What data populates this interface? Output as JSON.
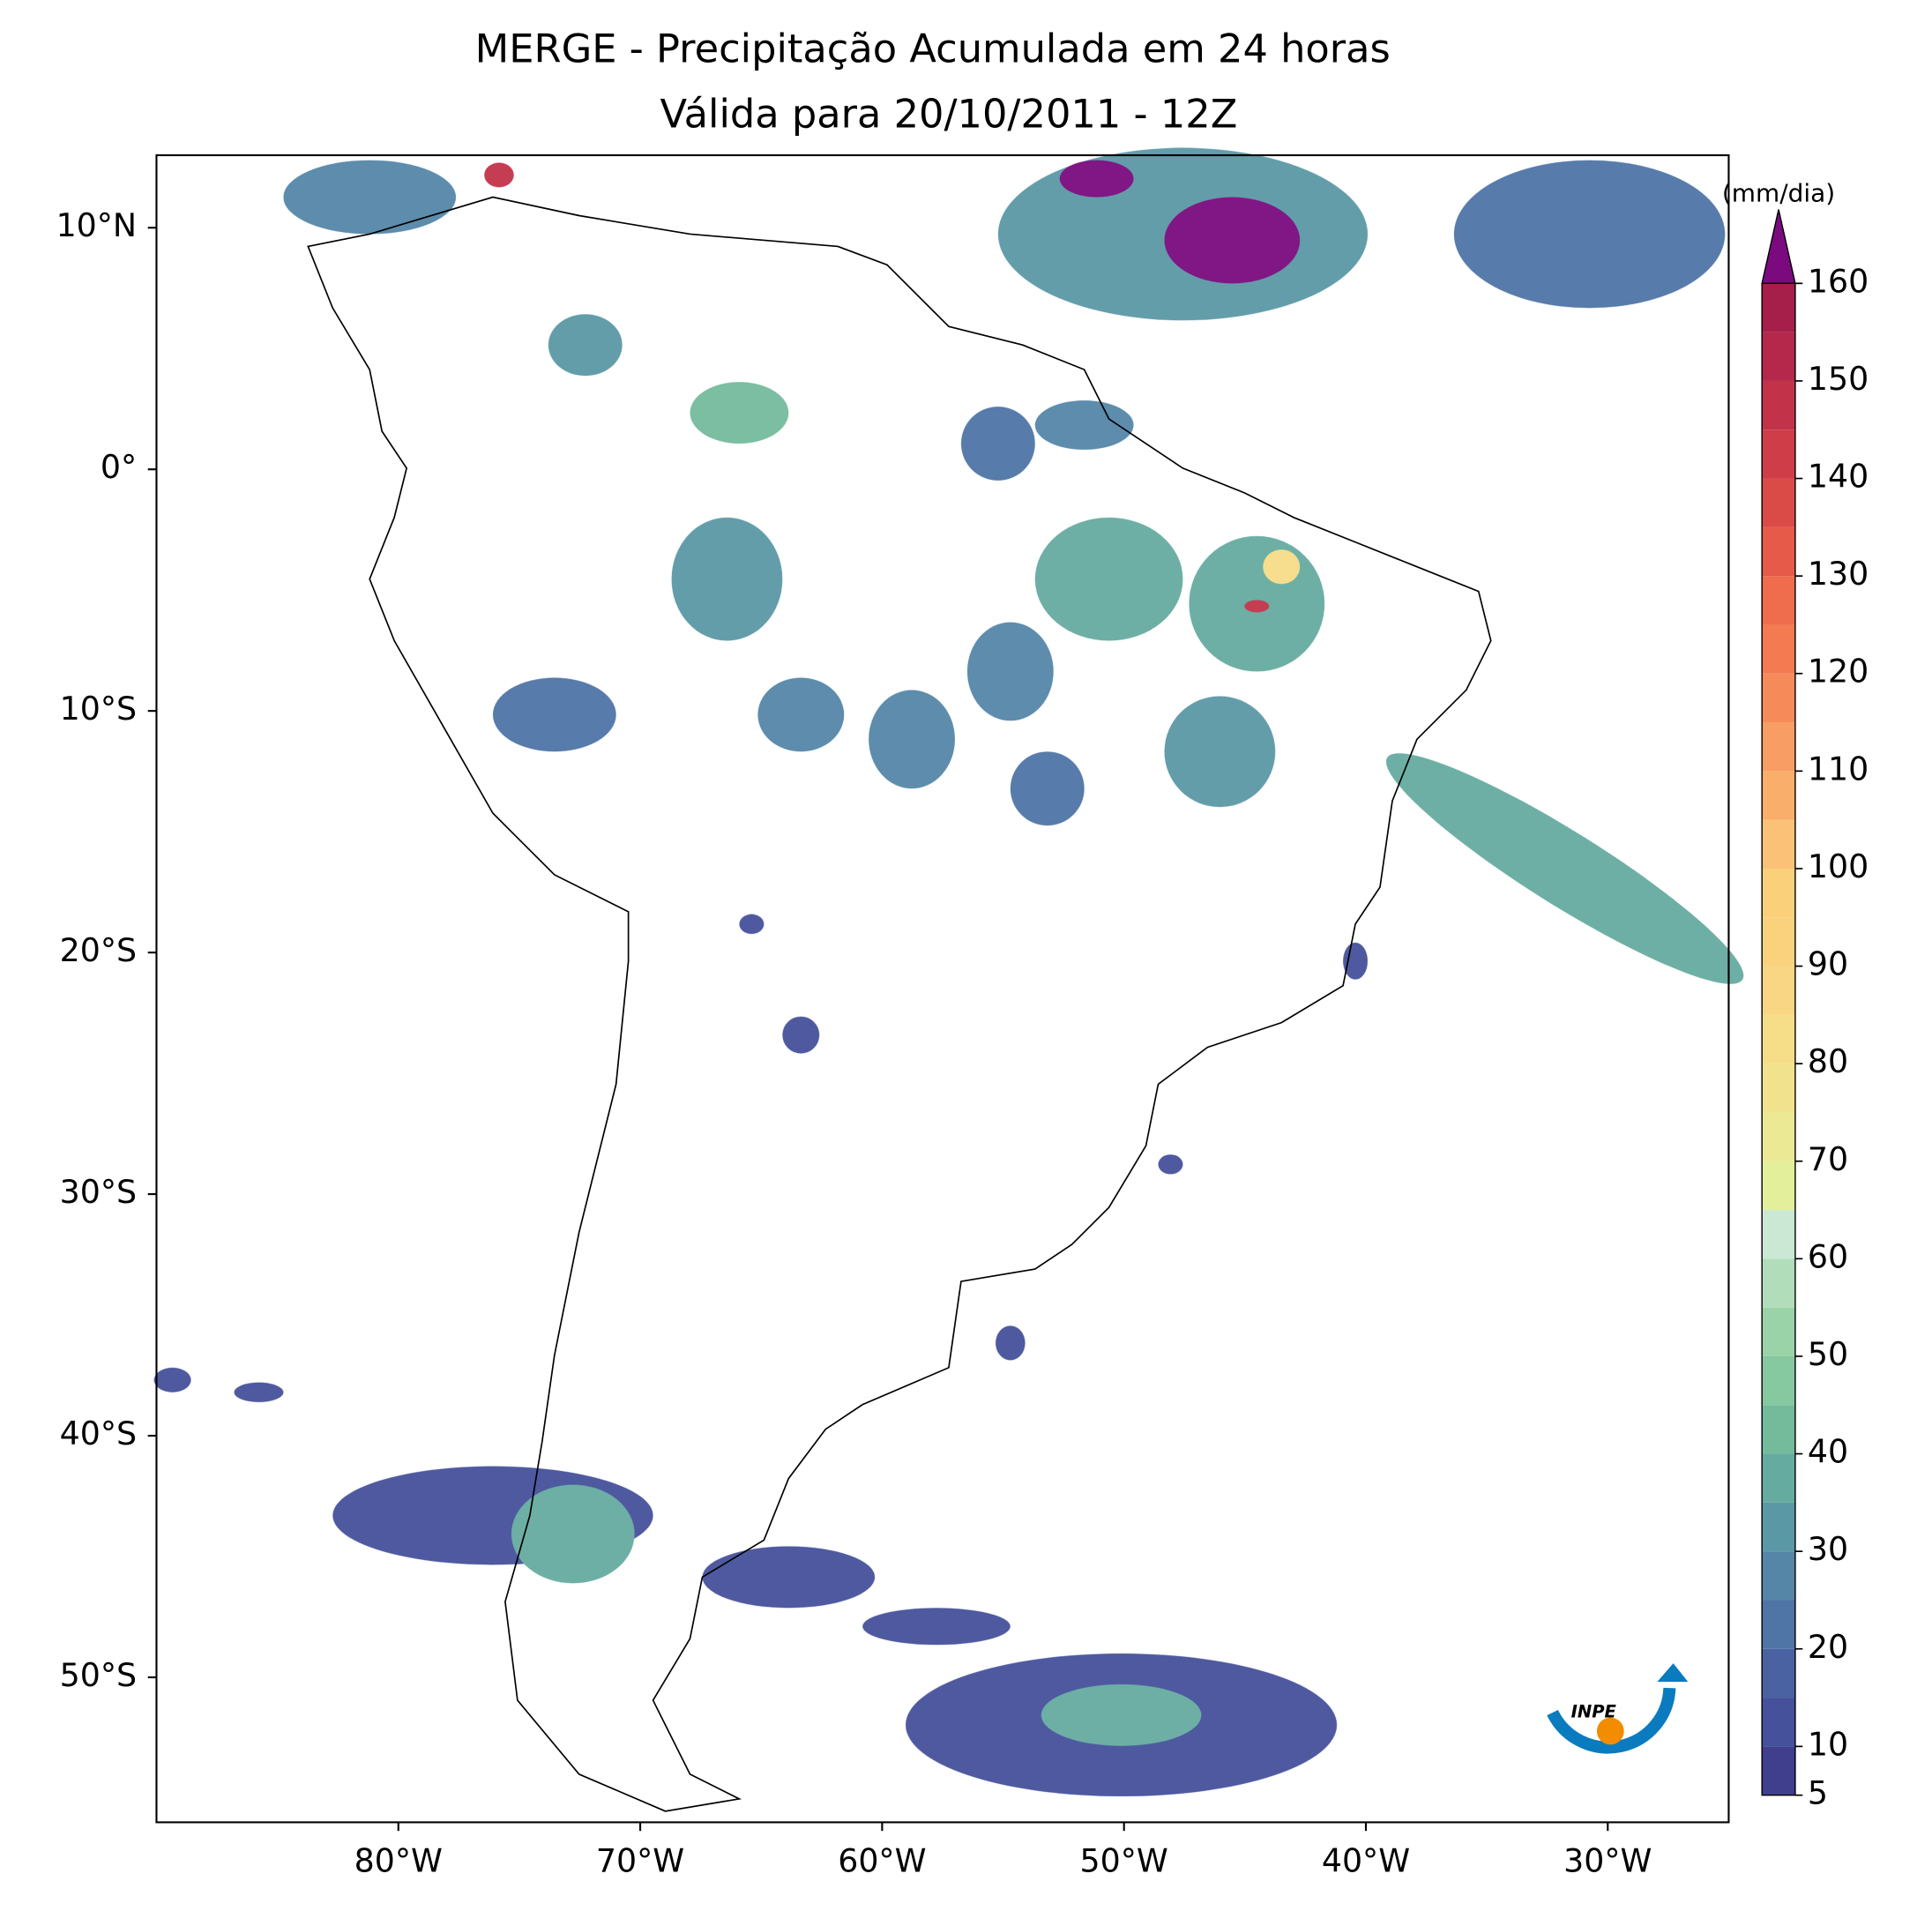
{
  "chart_data": {
    "type": "map",
    "title": "MERGE - Precipitação Acumulada em 24 horas",
    "subtitle": "Válida para 20/10/2011 - 12Z",
    "xlim": [
      -90,
      -25
    ],
    "ylim": [
      -56,
      13
    ],
    "xticks": [
      {
        "value": -80,
        "label": "80°W"
      },
      {
        "value": -70,
        "label": "70°W"
      },
      {
        "value": -60,
        "label": "60°W"
      },
      {
        "value": -50,
        "label": "50°W"
      },
      {
        "value": -40,
        "label": "40°W"
      },
      {
        "value": -30,
        "label": "30°W"
      }
    ],
    "yticks": [
      {
        "value": 10,
        "label": "10°N"
      },
      {
        "value": 0,
        "label": "0°"
      },
      {
        "value": -10,
        "label": "10°S"
      },
      {
        "value": -20,
        "label": "20°S"
      },
      {
        "value": -30,
        "label": "30°S"
      },
      {
        "value": -40,
        "label": "40°S"
      },
      {
        "value": -50,
        "label": "50°S"
      }
    ],
    "colorbar_label": "(mm/dia)",
    "levels": [
      5,
      10,
      15,
      20,
      25,
      30,
      35,
      40,
      45,
      50,
      55,
      60,
      65,
      70,
      75,
      80,
      85,
      90,
      95,
      100,
      105,
      110,
      115,
      120,
      125,
      130,
      135,
      140,
      145,
      150,
      155,
      160
    ],
    "colorbar_ticks": [
      5,
      10,
      20,
      30,
      40,
      50,
      60,
      70,
      80,
      90,
      100,
      110,
      120,
      130,
      140,
      150,
      160
    ],
    "colors": [
      "#3f3f8e",
      "#45519b",
      "#4a62a2",
      "#4f74a6",
      "#5586a8",
      "#5b98a6",
      "#66aba0",
      "#74bb9c",
      "#86c8a0",
      "#9ad3a8",
      "#b2ddbb",
      "#cbe8d5",
      "#e3ef9b",
      "#ebe994",
      "#f1e38d",
      "#f6dd88",
      "#f8d683",
      "#fad27e",
      "#fbd07b",
      "#fbc177",
      "#f9ae6b",
      "#f89d63",
      "#f68b59",
      "#f47a51",
      "#ef6c4c",
      "#e55a48",
      "#da4a47",
      "#ce3d48",
      "#c2334a",
      "#b5284b",
      "#a51f4a"
    ],
    "extend_color": "#7b0a7f"
  },
  "logo": "INPE"
}
